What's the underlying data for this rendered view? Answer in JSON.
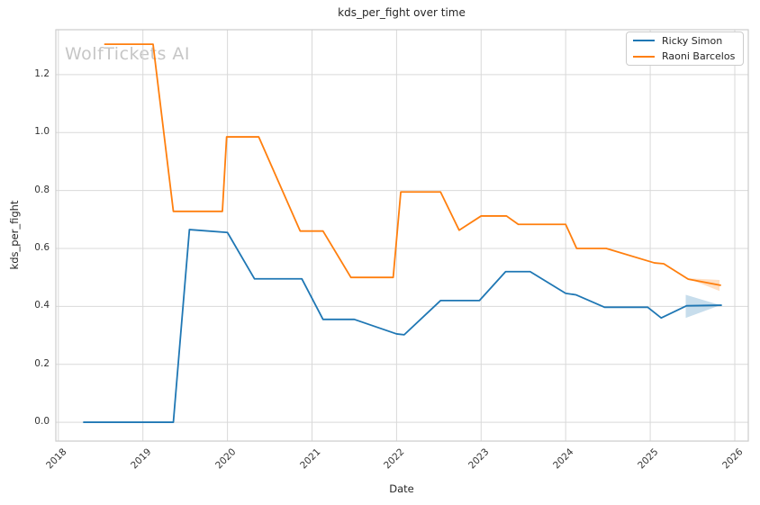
{
  "title": "kds_per_fight over time",
  "watermark": "WolfTickets AI",
  "xlabel": "Date",
  "ylabel": "kds_per_fight",
  "legend": {
    "position": "upper right",
    "entries": [
      {
        "label": "Ricky Simon",
        "color": "#1f77b4"
      },
      {
        "label": "Raoni Barcelos",
        "color": "#ff7f0e"
      }
    ]
  },
  "colors": {
    "blue_series": "#1f77b4",
    "orange_series": "#ff7f0e",
    "grid": "#d9d9d9",
    "spine": "#cccccc",
    "text": "#262626",
    "tick_text": "#333333",
    "watermark": "#c6c6c6",
    "background": "#ffffff"
  },
  "chart_data": {
    "type": "line",
    "title": "kds_per_fight over time",
    "xlabel": "Date",
    "ylabel": "kds_per_fight",
    "grid": true,
    "legend_position": "upper right",
    "xlim": [
      2017.97,
      2026.16
    ],
    "ylim": [
      -0.065,
      1.355
    ],
    "x_ticks": [
      2018,
      2019,
      2020,
      2021,
      2022,
      2023,
      2024,
      2025,
      2026
    ],
    "y_ticks": [
      0.0,
      0.2,
      0.4,
      0.6,
      0.8,
      1.0,
      1.2
    ],
    "series": [
      {
        "name": "Ricky Simon",
        "color": "#1f77b4",
        "points": [
          [
            2018.3,
            0.0
          ],
          [
            2019.36,
            0.0
          ],
          [
            2019.55,
            0.665
          ],
          [
            2020.0,
            0.655
          ],
          [
            2020.32,
            0.495
          ],
          [
            2020.88,
            0.495
          ],
          [
            2021.13,
            0.355
          ],
          [
            2021.5,
            0.355
          ],
          [
            2022.0,
            0.305
          ],
          [
            2022.09,
            0.302
          ],
          [
            2022.52,
            0.42
          ],
          [
            2022.98,
            0.42
          ],
          [
            2023.29,
            0.52
          ],
          [
            2023.58,
            0.52
          ],
          [
            2024.0,
            0.445
          ],
          [
            2024.12,
            0.44
          ],
          [
            2024.46,
            0.397
          ],
          [
            2024.97,
            0.397
          ],
          [
            2025.13,
            0.36
          ],
          [
            2025.43,
            0.402
          ],
          [
            2025.84,
            0.404
          ]
        ]
      },
      {
        "name": "Raoni Barcelos",
        "color": "#ff7f0e",
        "points": [
          [
            2018.55,
            1.305
          ],
          [
            2019.12,
            1.305
          ],
          [
            2019.36,
            0.728
          ],
          [
            2019.94,
            0.728
          ],
          [
            2019.99,
            0.985
          ],
          [
            2020.37,
            0.985
          ],
          [
            2020.86,
            0.66
          ],
          [
            2021.13,
            0.66
          ],
          [
            2021.46,
            0.5
          ],
          [
            2021.96,
            0.5
          ],
          [
            2022.05,
            0.795
          ],
          [
            2022.52,
            0.795
          ],
          [
            2022.74,
            0.663
          ],
          [
            2023.0,
            0.712
          ],
          [
            2023.3,
            0.712
          ],
          [
            2023.44,
            0.683
          ],
          [
            2024.0,
            0.683
          ],
          [
            2024.13,
            0.6
          ],
          [
            2024.48,
            0.6
          ],
          [
            2025.05,
            0.55
          ],
          [
            2025.16,
            0.547
          ],
          [
            2025.45,
            0.494
          ],
          [
            2025.83,
            0.473
          ]
        ]
      }
    ],
    "forecast_bands": [
      {
        "series": "Ricky Simon",
        "color": "#1f77b4",
        "opacity": 0.25,
        "polygon": [
          [
            2025.42,
            0.44
          ],
          [
            2025.83,
            0.404
          ],
          [
            2025.42,
            0.36
          ]
        ]
      },
      {
        "series": "Raoni Barcelos",
        "color": "#ff7f0e",
        "opacity": 0.25,
        "polygon": [
          [
            2025.44,
            0.497
          ],
          [
            2025.82,
            0.491
          ],
          [
            2025.82,
            0.453
          ]
        ]
      }
    ]
  }
}
